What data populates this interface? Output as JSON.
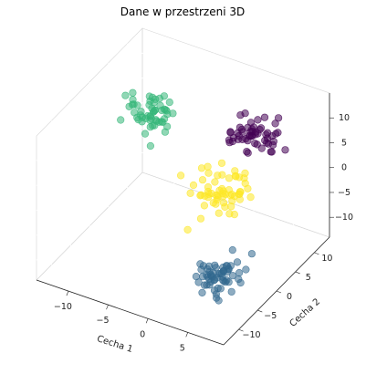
{
  "chart_data": {
    "type": "scatter",
    "title": "Dane w przestrzeni 3D",
    "xlabel": "Cecha 1",
    "ylabel": "Cecha 2",
    "zlabel": "",
    "xlim": [
      -14,
      9.5
    ],
    "ylim": [
      -14,
      14
    ],
    "zlim": [
      -14,
      15
    ],
    "x_ticks": [
      -10,
      -5,
      0,
      5
    ],
    "y_ticks": [
      -10,
      -5,
      0,
      5,
      10
    ],
    "z_ticks": [
      -10,
      -5,
      0,
      5,
      10
    ],
    "x_tick_labels": [
      "−10",
      "−5",
      "0",
      "5"
    ],
    "y_tick_labels": [
      "−10",
      "−5",
      "0",
      "5",
      "10"
    ],
    "z_tick_labels": [
      "−10",
      "−5",
      "0",
      "5",
      "10"
    ],
    "grid": true,
    "clusters": [
      {
        "color": "#440154",
        "center": [
          2.5,
          9.0,
          6.5
        ],
        "spread": [
          1.6,
          1.8,
          1.6
        ],
        "count": 55
      },
      {
        "color": "#35b779",
        "center": [
          -8.0,
          3.5,
          9.5
        ],
        "spread": [
          1.6,
          1.8,
          1.5
        ],
        "count": 55
      },
      {
        "color": "#fde725",
        "center": [
          0.5,
          4.0,
          -2.0
        ],
        "spread": [
          1.7,
          1.8,
          1.7
        ],
        "count": 60
      },
      {
        "color": "#31688e",
        "center": [
          6.5,
          -8.0,
          -6.5
        ],
        "spread": [
          1.4,
          1.6,
          1.5
        ],
        "count": 60
      }
    ],
    "marker_alpha": 0.55
  }
}
